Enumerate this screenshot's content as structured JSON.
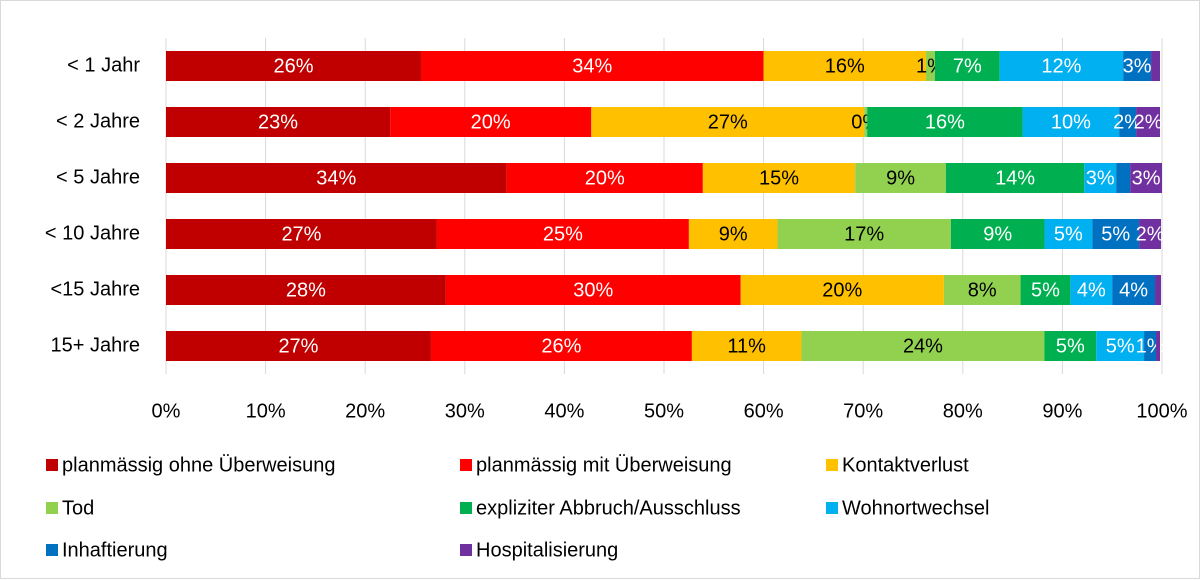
{
  "chart_data": {
    "type": "stacked_barh",
    "categories": [
      "< 1 Jahr",
      "< 2 Jahre",
      "< 5 Jahre",
      "< 10 Jahre",
      "<15 Jahre",
      "15+ Jahre"
    ],
    "series": [
      {
        "name": "planmässig ohne Überweisung",
        "color": "#c00000",
        "values": [
          25.6,
          22.5,
          34.2,
          27.2,
          28.1,
          26.6
        ],
        "value_labels": [
          "26%",
          "23%",
          "34%",
          "27%",
          "28%",
          "27%"
        ]
      },
      {
        "name": "planmässig mit Überweisung",
        "color": "#ff0000",
        "values": [
          34.4,
          20.2,
          19.7,
          25.3,
          29.6,
          26.2
        ],
        "value_labels": [
          "34%",
          "20%",
          "20%",
          "25%",
          "30%",
          "26%"
        ]
      },
      {
        "name": "Kontaktverlust",
        "color": "#ffc000",
        "values": [
          16.3,
          27.4,
          15.3,
          8.9,
          20.4,
          11.0
        ],
        "value_labels": [
          "16%",
          "27%",
          "15%",
          "9%",
          "20%",
          "11%"
        ]
      },
      {
        "name": "Tod",
        "color": "#92d050",
        "values": [
          0.9,
          0.3,
          9.1,
          17.4,
          7.7,
          24.4
        ],
        "value_labels": [
          "1%",
          "0%",
          "9%",
          "17%",
          "8%",
          "24%"
        ]
      },
      {
        "name": "expliziter Abbruch/Ausschluss",
        "color": "#00b050",
        "values": [
          6.5,
          15.6,
          13.9,
          9.4,
          5.0,
          5.2
        ],
        "value_labels": [
          "7%",
          "16%",
          "14%",
          "9%",
          "5%",
          "5%"
        ]
      },
      {
        "name": "Wohnortwechsel",
        "color": "#00b0f0",
        "values": [
          12.4,
          9.7,
          3.2,
          4.8,
          4.2,
          4.8
        ],
        "value_labels": [
          "12%",
          "10%",
          "3%",
          "5%",
          "4%",
          "5%"
        ]
      },
      {
        "name": "Inhaftierung",
        "color": "#0070c0",
        "values": [
          2.8,
          1.7,
          1.4,
          4.7,
          4.3,
          1.2
        ],
        "value_labels": [
          "3%",
          "2%",
          null,
          "5%",
          "4%",
          "1%"
        ]
      },
      {
        "name": "Hospitalisierung",
        "color": "#7030a0",
        "values": [
          0.9,
          2.4,
          3.2,
          2.2,
          0.6,
          0.4
        ],
        "value_labels": [
          null,
          "2%",
          "3%",
          "2%",
          null,
          null
        ]
      }
    ],
    "xlim": [
      0,
      100
    ],
    "xticks": [
      {
        "value": 0,
        "label": "0%"
      },
      {
        "value": 10,
        "label": "10%"
      },
      {
        "value": 20,
        "label": "20%"
      },
      {
        "value": 30,
        "label": "30%"
      },
      {
        "value": 40,
        "label": "40%"
      },
      {
        "value": 50,
        "label": "50%"
      },
      {
        "value": 60,
        "label": "60%"
      },
      {
        "value": 70,
        "label": "70%"
      },
      {
        "value": 80,
        "label": "80%"
      },
      {
        "value": 90,
        "label": "90%"
      },
      {
        "value": 100,
        "label": "100%"
      }
    ],
    "grid": true,
    "legend": "bottom"
  }
}
